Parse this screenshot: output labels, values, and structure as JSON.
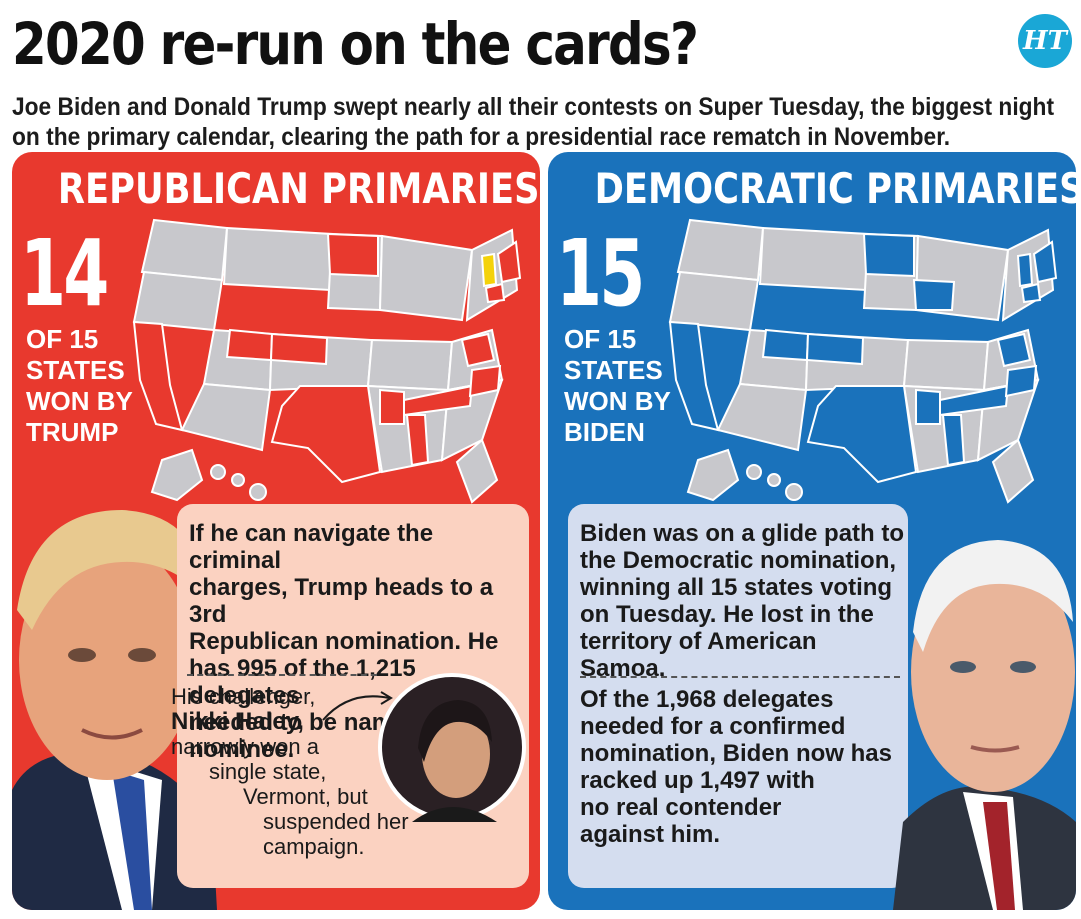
{
  "header": {
    "headline": "2020 re-run on the cards?",
    "logo": "HT",
    "subhead": "Joe Biden and Donald Trump swept nearly all their contests on Super Tuesday, the biggest night on the primary calendar, clearing the path for a presidential race rematch in November."
  },
  "republican": {
    "title": "REPUBLICAN PRIMARIES",
    "big_number": "14",
    "caption_lines": [
      "OF 15",
      "STATES",
      "WON BY",
      "TRUMP"
    ],
    "main_text_lines": [
      "If he can navigate the criminal",
      "charges, Trump heads to a 3rd",
      "Republican nomination. He",
      "has 995 of the 1,215 delegates",
      "needed to be named nominee."
    ],
    "haley_lines": [
      "His challenger,",
      "Nikki Haley,",
      "narrowly won a",
      "single state,",
      "Vermont, but",
      "suspended her",
      "campaign."
    ],
    "colors": {
      "panel": "#e8392e",
      "won_state": "#e8392e",
      "haley_state": "#f4d20a",
      "other_state": "#c8c8cc"
    }
  },
  "democratic": {
    "title": "DEMOCRATIC PRIMARIES",
    "big_number": "15",
    "caption_lines": [
      "OF 15",
      "STATES",
      "WON BY",
      "BIDEN"
    ],
    "main_text_lines": [
      "Biden was on a glide path to",
      "the Democratic nomination,",
      "winning all 15 states voting",
      "on Tuesday. He lost in the",
      "territory of American Samoa."
    ],
    "second_text_lines": [
      "Of the 1,968 delegates",
      "needed for a confirmed",
      "nomination, Biden now has",
      "racked up 1,497 with",
      "no real contender",
      "against him."
    ],
    "colors": {
      "panel": "#1a72bb",
      "won_state": "#1a72bb",
      "other_state": "#c8c8cc"
    }
  }
}
